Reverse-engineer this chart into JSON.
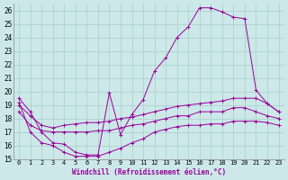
{
  "bg_color": "#cce8e8",
  "grid_color": "#aacece",
  "line_color": "#990099",
  "title": "Windchill (Refroidissement éolien,°C)",
  "ylim": [
    15,
    26.5
  ],
  "xlim": [
    -0.5,
    23.5
  ],
  "ytick_min": 15,
  "ytick_max": 26,
  "xticks": [
    0,
    1,
    2,
    3,
    4,
    5,
    6,
    7,
    8,
    9,
    10,
    11,
    12,
    13,
    14,
    15,
    16,
    17,
    18,
    19,
    20,
    21,
    22,
    23
  ],
  "series": [
    [
      19.5,
      18.5,
      17.0,
      16.2,
      16.1,
      15.5,
      15.3,
      15.3,
      19.9,
      16.8,
      18.3,
      19.4,
      21.5,
      22.5,
      24.0,
      24.8,
      26.2,
      26.2,
      25.9,
      25.5,
      25.4,
      20.1,
      19.1,
      18.5
    ],
    [
      19.2,
      17.0,
      16.2,
      16.0,
      15.5,
      15.2,
      15.2,
      15.2,
      15.5,
      15.8,
      16.2,
      16.5,
      17.0,
      17.2,
      17.4,
      17.5,
      17.5,
      17.6,
      17.6,
      17.8,
      17.8,
      17.8,
      17.7,
      17.5
    ],
    [
      19.0,
      18.2,
      17.5,
      17.3,
      17.5,
      17.6,
      17.7,
      17.7,
      17.8,
      18.0,
      18.1,
      18.3,
      18.5,
      18.7,
      18.9,
      19.0,
      19.1,
      19.2,
      19.3,
      19.5,
      19.5,
      19.5,
      19.1,
      18.5
    ],
    [
      18.5,
      17.5,
      17.1,
      17.0,
      17.0,
      17.0,
      17.0,
      17.1,
      17.1,
      17.3,
      17.5,
      17.6,
      17.8,
      18.0,
      18.2,
      18.2,
      18.5,
      18.5,
      18.5,
      18.8,
      18.8,
      18.5,
      18.2,
      18.0
    ]
  ]
}
